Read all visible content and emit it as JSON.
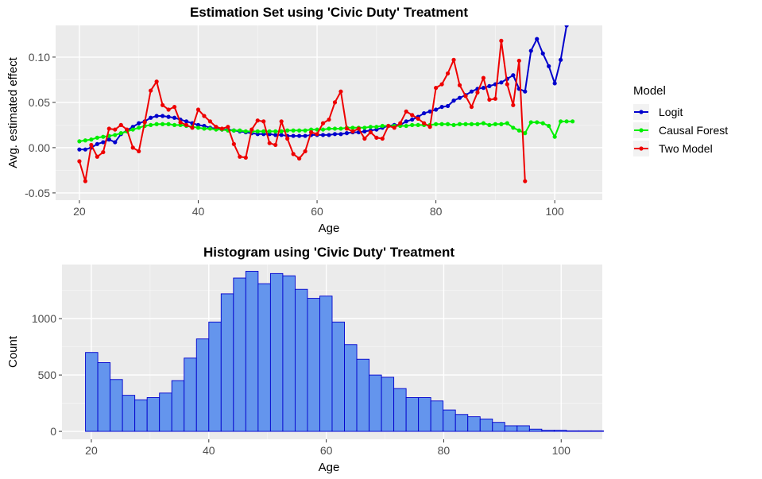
{
  "chart_data": [
    {
      "type": "line",
      "title": "Estimation Set using 'Civic Duty' Treatment",
      "xlabel": "Age",
      "ylabel": "Avg. estimated effect",
      "xlim": [
        16,
        108
      ],
      "ylim": [
        -0.058,
        0.135
      ],
      "xticks": [
        20,
        40,
        60,
        80,
        100
      ],
      "yticks": [
        -0.05,
        0.0,
        0.05,
        0.1
      ],
      "ytick_labels": [
        "-0.05",
        "0.00",
        "0.05",
        "0.10"
      ],
      "grid": true,
      "legend": {
        "title": "Model",
        "placement": "right"
      },
      "series": [
        {
          "name": "Logit",
          "color": "#0000cc",
          "x": [
            20,
            21,
            22,
            23,
            24,
            25,
            26,
            27,
            28,
            29,
            30,
            31,
            32,
            33,
            34,
            35,
            36,
            37,
            38,
            39,
            40,
            41,
            42,
            43,
            44,
            45,
            46,
            47,
            48,
            49,
            50,
            51,
            52,
            53,
            54,
            55,
            56,
            57,
            58,
            59,
            60,
            61,
            62,
            63,
            64,
            65,
            66,
            67,
            68,
            69,
            70,
            71,
            72,
            73,
            74,
            75,
            76,
            77,
            78,
            79,
            80,
            81,
            82,
            83,
            84,
            85,
            86,
            87,
            88,
            89,
            90,
            91,
            92,
            93,
            94,
            95,
            96,
            97,
            98,
            99,
            100,
            101,
            102
          ],
          "y": [
            -0.002,
            -0.002,
            0.0,
            0.004,
            0.006,
            0.009,
            0.006,
            0.015,
            0.019,
            0.023,
            0.027,
            0.029,
            0.033,
            0.035,
            0.035,
            0.034,
            0.033,
            0.031,
            0.029,
            0.027,
            0.025,
            0.024,
            0.022,
            0.021,
            0.02,
            0.02,
            0.019,
            0.018,
            0.017,
            0.016,
            0.015,
            0.015,
            0.015,
            0.014,
            0.014,
            0.013,
            0.013,
            0.013,
            0.013,
            0.014,
            0.014,
            0.014,
            0.014,
            0.015,
            0.015,
            0.016,
            0.017,
            0.017,
            0.018,
            0.019,
            0.02,
            0.022,
            0.024,
            0.025,
            0.025,
            0.029,
            0.031,
            0.034,
            0.038,
            0.04,
            0.042,
            0.045,
            0.046,
            0.052,
            0.055,
            0.058,
            0.062,
            0.065,
            0.066,
            0.068,
            0.07,
            0.072,
            0.076,
            0.08,
            0.065,
            0.062,
            0.107,
            0.12,
            0.104,
            0.09,
            0.071,
            0.097,
            0.135
          ]
        },
        {
          "name": "Causal Forest",
          "color": "#00ee00",
          "x": [
            20,
            21,
            22,
            23,
            24,
            25,
            26,
            27,
            28,
            29,
            30,
            31,
            32,
            33,
            34,
            35,
            36,
            37,
            38,
            39,
            40,
            41,
            42,
            43,
            44,
            45,
            46,
            47,
            48,
            49,
            50,
            51,
            52,
            53,
            54,
            55,
            56,
            57,
            58,
            59,
            60,
            61,
            62,
            63,
            64,
            65,
            66,
            67,
            68,
            69,
            70,
            71,
            72,
            73,
            74,
            75,
            76,
            77,
            78,
            79,
            80,
            81,
            82,
            83,
            84,
            85,
            86,
            87,
            88,
            89,
            90,
            91,
            92,
            93,
            94,
            95,
            96,
            97,
            98,
            99,
            100,
            101,
            102,
            103
          ],
          "y": [
            0.007,
            0.008,
            0.009,
            0.011,
            0.012,
            0.013,
            0.014,
            0.016,
            0.018,
            0.02,
            0.022,
            0.024,
            0.025,
            0.026,
            0.026,
            0.026,
            0.025,
            0.025,
            0.024,
            0.023,
            0.022,
            0.021,
            0.021,
            0.02,
            0.02,
            0.019,
            0.019,
            0.019,
            0.018,
            0.018,
            0.018,
            0.018,
            0.018,
            0.018,
            0.018,
            0.019,
            0.019,
            0.019,
            0.019,
            0.02,
            0.02,
            0.02,
            0.021,
            0.021,
            0.021,
            0.022,
            0.022,
            0.022,
            0.022,
            0.023,
            0.023,
            0.024,
            0.024,
            0.024,
            0.024,
            0.024,
            0.025,
            0.025,
            0.025,
            0.025,
            0.026,
            0.026,
            0.026,
            0.025,
            0.026,
            0.026,
            0.026,
            0.026,
            0.027,
            0.025,
            0.026,
            0.026,
            0.027,
            0.022,
            0.019,
            0.016,
            0.028,
            0.028,
            0.027,
            0.024,
            0.012,
            0.029,
            0.029,
            0.029
          ]
        },
        {
          "name": "Two Model",
          "color": "#ee0000",
          "x": [
            20,
            21,
            22,
            23,
            24,
            25,
            26,
            27,
            28,
            29,
            30,
            31,
            32,
            33,
            34,
            35,
            36,
            37,
            38,
            39,
            40,
            41,
            42,
            43,
            44,
            45,
            46,
            47,
            48,
            49,
            50,
            51,
            52,
            53,
            54,
            55,
            56,
            57,
            58,
            59,
            60,
            61,
            62,
            63,
            64,
            65,
            66,
            67,
            68,
            69,
            70,
            71,
            72,
            73,
            74,
            75,
            76,
            77,
            78,
            79,
            80,
            81,
            82,
            83,
            84,
            85,
            86,
            87,
            88,
            89,
            90,
            91,
            92,
            93,
            94,
            95
          ],
          "y": [
            -0.015,
            -0.037,
            0.003,
            -0.01,
            -0.005,
            0.021,
            0.02,
            0.025,
            0.02,
            0.0,
            -0.004,
            0.028,
            0.063,
            0.073,
            0.047,
            0.042,
            0.045,
            0.028,
            0.025,
            0.022,
            0.042,
            0.035,
            0.029,
            0.023,
            0.021,
            0.023,
            0.004,
            -0.01,
            -0.011,
            0.02,
            0.03,
            0.029,
            0.005,
            0.003,
            0.029,
            0.01,
            -0.007,
            -0.012,
            -0.004,
            0.017,
            0.015,
            0.027,
            0.031,
            0.05,
            0.062,
            0.021,
            0.018,
            0.021,
            0.01,
            0.017,
            0.011,
            0.01,
            0.024,
            0.022,
            0.027,
            0.04,
            0.036,
            0.032,
            0.027,
            0.023,
            0.066,
            0.07,
            0.082,
            0.097,
            0.069,
            0.057,
            0.045,
            0.061,
            0.077,
            0.053,
            0.054,
            0.118,
            0.07,
            0.047,
            0.096,
            -0.037
          ]
        }
      ]
    },
    {
      "type": "bar",
      "title": "Histogram using 'Civic Duty' Treatment",
      "xlabel": "Age",
      "ylabel": "Count",
      "xlim": [
        15,
        107
      ],
      "ylim": [
        -70,
        1480
      ],
      "xticks": [
        20,
        40,
        60,
        80,
        100
      ],
      "yticks": [
        0,
        500,
        1000
      ],
      "grid": true,
      "bar_fill": "#6495ed",
      "bar_edge": "#0000cd",
      "bin_start": 19,
      "bin_width": 2.1,
      "values": [
        700,
        610,
        460,
        320,
        280,
        300,
        340,
        450,
        650,
        820,
        970,
        1220,
        1360,
        1420,
        1310,
        1400,
        1380,
        1260,
        1180,
        1200,
        970,
        770,
        640,
        500,
        480,
        380,
        300,
        300,
        270,
        190,
        150,
        130,
        110,
        80,
        50,
        50,
        20,
        10,
        10,
        5,
        5,
        5
      ]
    }
  ]
}
